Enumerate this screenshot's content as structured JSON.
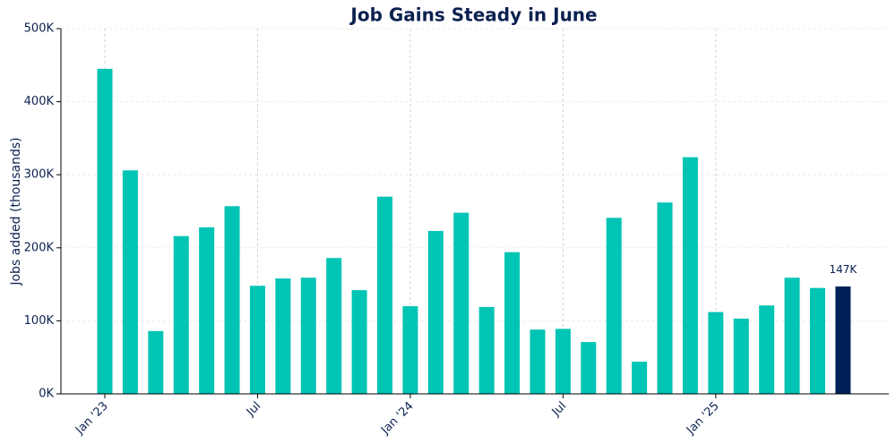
{
  "chart_data": {
    "type": "bar",
    "title": "Job Gains Steady in June",
    "ylabel": "Jobs added (thousands)",
    "x": [
      "2023-01",
      "2023-02",
      "2023-03",
      "2023-04",
      "2023-05",
      "2023-06",
      "2023-07",
      "2023-08",
      "2023-09",
      "2023-10",
      "2023-11",
      "2023-12",
      "2024-01",
      "2024-02",
      "2024-03",
      "2024-04",
      "2024-05",
      "2024-06",
      "2024-07",
      "2024-08",
      "2024-09",
      "2024-10",
      "2024-11",
      "2024-12",
      "2025-01",
      "2025-02",
      "2025-03",
      "2025-04",
      "2025-05",
      "2025-06"
    ],
    "values": [
      445,
      306,
      86,
      216,
      228,
      257,
      148,
      158,
      159,
      186,
      142,
      270,
      120,
      223,
      248,
      119,
      194,
      88,
      89,
      71,
      241,
      44,
      262,
      324,
      112,
      103,
      121,
      159,
      145,
      147
    ],
    "value_labels": [
      null,
      null,
      null,
      null,
      null,
      null,
      null,
      null,
      null,
      null,
      null,
      null,
      null,
      null,
      null,
      null,
      null,
      null,
      null,
      null,
      null,
      null,
      null,
      null,
      null,
      null,
      null,
      null,
      null,
      "147K"
    ],
    "colors": [
      "#00c4b4",
      "#00c4b4",
      "#00c4b4",
      "#00c4b4",
      "#00c4b4",
      "#00c4b4",
      "#00c4b4",
      "#00c4b4",
      "#00c4b4",
      "#00c4b4",
      "#00c4b4",
      "#00c4b4",
      "#00c4b4",
      "#00c4b4",
      "#00c4b4",
      "#00c4b4",
      "#00c4b4",
      "#00c4b4",
      "#00c4b4",
      "#00c4b4",
      "#00c4b4",
      "#00c4b4",
      "#00c4b4",
      "#00c4b4",
      "#00c4b4",
      "#00c4b4",
      "#00c4b4",
      "#00c4b4",
      "#00c4b4",
      "#002157"
    ],
    "ylim": [
      0,
      500
    ],
    "yticks": [
      {
        "value": 0,
        "label": "0K"
      },
      {
        "value": 100,
        "label": "100K"
      },
      {
        "value": 200,
        "label": "200K"
      },
      {
        "value": 300,
        "label": "300K"
      },
      {
        "value": 400,
        "label": "400K"
      },
      {
        "value": 500,
        "label": "500K"
      }
    ],
    "xticks": [
      {
        "value": "2023-01",
        "label": "Jan '23"
      },
      {
        "value": "2023-07",
        "label": "Jul"
      },
      {
        "value": "2024-01",
        "label": "Jan '24"
      },
      {
        "value": "2024-07",
        "label": "Jul"
      },
      {
        "value": "2025-01",
        "label": "Jan '25"
      }
    ],
    "grid": true
  }
}
